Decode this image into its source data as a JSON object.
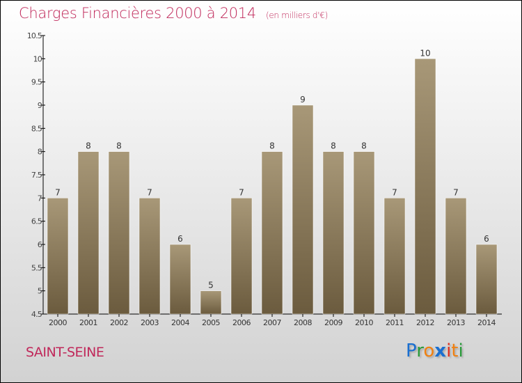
{
  "title": "Charges Financières 2000 à 2014",
  "unit": "(en milliers d'€)",
  "city": "SAINT-SEINE",
  "logo": "Proxiti",
  "chart_data": {
    "type": "bar",
    "title": "Charges Financières 2000 à 2014",
    "subtitle": "(en milliers d'€)",
    "categories": [
      "2000",
      "2001",
      "2002",
      "2003",
      "2004",
      "2005",
      "2006",
      "2007",
      "2008",
      "2009",
      "2010",
      "2011",
      "2012",
      "2013",
      "2014"
    ],
    "values": [
      7,
      8,
      8,
      7,
      6,
      5,
      7,
      8,
      9,
      8,
      8,
      7,
      10,
      7,
      6
    ],
    "ylim": [
      4.5,
      10.5
    ],
    "yticks": [
      "4.5",
      "5",
      "5.5",
      "6",
      "6.5",
      "7",
      "7.5",
      "8",
      "8.5",
      "9",
      "9.5",
      "10",
      "10.5"
    ],
    "xlabel": "",
    "ylabel": "",
    "bar_color_top": "#a89878",
    "bar_color_bottom": "#6b5b3e"
  }
}
